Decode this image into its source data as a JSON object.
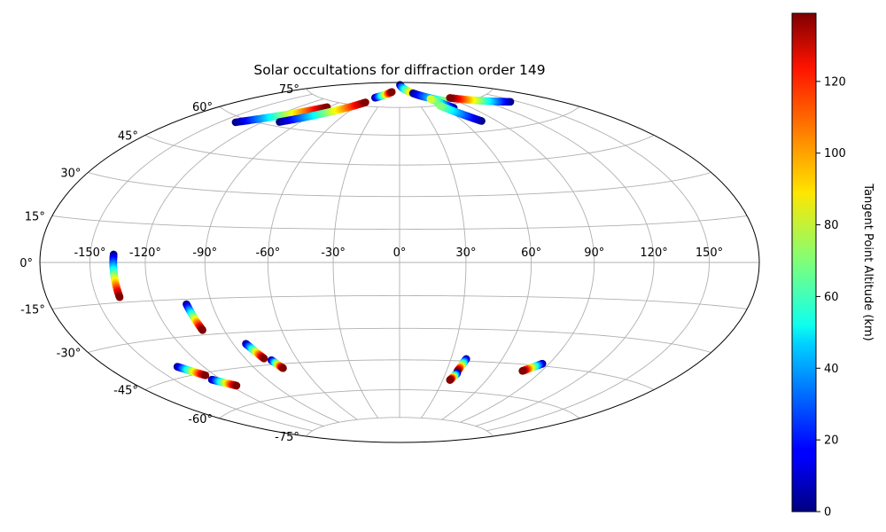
{
  "chart_data": {
    "type": "scatter",
    "projection": "hammer",
    "title": "Solar occultations for diffraction order 149",
    "grid": true,
    "lon_ticks": [
      {
        "value": -150,
        "label": "-150°"
      },
      {
        "value": -120,
        "label": "-120°"
      },
      {
        "value": -90,
        "label": "-90°"
      },
      {
        "value": -60,
        "label": "-60°"
      },
      {
        "value": -30,
        "label": "-30°"
      },
      {
        "value": 0,
        "label": "0°"
      },
      {
        "value": 30,
        "label": "30°"
      },
      {
        "value": 60,
        "label": "60°"
      },
      {
        "value": 90,
        "label": "90°"
      },
      {
        "value": 120,
        "label": "120°"
      },
      {
        "value": 150,
        "label": "150°"
      }
    ],
    "lat_ticks": [
      {
        "value": 75,
        "label": "75°"
      },
      {
        "value": 60,
        "label": "60°"
      },
      {
        "value": 45,
        "label": "45°"
      },
      {
        "value": 30,
        "label": "30°"
      },
      {
        "value": 15,
        "label": "15°"
      },
      {
        "value": 0,
        "label": "0°"
      },
      {
        "value": -15,
        "label": "-15°"
      },
      {
        "value": -30,
        "label": "-30°"
      },
      {
        "value": -45,
        "label": "-45°"
      },
      {
        "value": -60,
        "label": "-60°"
      },
      {
        "value": -75,
        "label": "-75°"
      }
    ],
    "colorbar": {
      "label": "Tangent Point Altitude (km)",
      "min": 0,
      "max": 139,
      "ticks": [
        0,
        20,
        40,
        60,
        80,
        100,
        120
      ],
      "colormap": "jet",
      "position": "right"
    },
    "tracks": [
      {
        "lon_start": -137.0,
        "lat_start": 3.0,
        "lon_end": -137.0,
        "lat_end": -13.0,
        "alt_start": 0,
        "alt_end": 139
      },
      {
        "lon_start": -103.0,
        "lat_start": -17.0,
        "lon_end": -101.5,
        "lat_end": -28.0,
        "alt_start": 0,
        "alt_end": 139
      },
      {
        "lon_start": -83.0,
        "lat_start": -35.0,
        "lon_end": -79.0,
        "lat_end": -42.0,
        "alt_start": 0,
        "alt_end": 139
      },
      {
        "lon_start": -75.5,
        "lat_start": -43.0,
        "lon_end": -72.5,
        "lat_end": -47.0,
        "alt_start": 0,
        "alt_end": 139
      },
      {
        "lon_start": -136.0,
        "lat_start": -41.0,
        "lon_end": -126.0,
        "lat_end": -46.0,
        "alt_start": 0,
        "alt_end": 139
      },
      {
        "lon_start": -126.0,
        "lat_start": -48.0,
        "lon_end": -116.0,
        "lat_end": -52.0,
        "alt_start": 0,
        "alt_end": 139
      },
      {
        "lon_start": 39.0,
        "lat_start": -44.0,
        "lon_end": 37.0,
        "lat_end": -50.0,
        "alt_start": 0,
        "alt_end": 139
      },
      {
        "lon_start": 37.5,
        "lat_start": -51.0,
        "lon_end": 35.0,
        "lat_end": -54.5,
        "alt_start": 0,
        "alt_end": 139
      },
      {
        "lon_start": 86.0,
        "lat_start": -44.0,
        "lon_end": 78.0,
        "lat_end": -48.0,
        "alt_start": 0,
        "alt_end": 139
      },
      {
        "lon_start": -139.0,
        "lat_start": 58.0,
        "lon_end": -92.0,
        "lat_end": 72.0,
        "alt_start": 0,
        "alt_end": 139
      },
      {
        "lon_start": -107.0,
        "lat_start": 62.0,
        "lon_end": -55.0,
        "lat_end": 77.0,
        "alt_start": 0,
        "alt_end": 139
      },
      {
        "lon_start": -50.0,
        "lat_start": 80.0,
        "lon_end": -25.0,
        "lat_end": 84.0,
        "alt_start": 0,
        "alt_end": 139
      },
      {
        "lon_start": 5.0,
        "lat_start": 88.5,
        "lon_end": 53.0,
        "lat_end": 80.5,
        "alt_start": 0,
        "alt_end": 139
      },
      {
        "lon_start": 38.0,
        "lat_start": 83.0,
        "lon_end": 75.0,
        "lat_end": 77.0,
        "alt_start": 0,
        "alt_end": 70
      },
      {
        "lon_start": 70.0,
        "lat_start": 73.0,
        "lon_end": 58.0,
        "lat_end": 79.0,
        "alt_start": 0,
        "alt_end": 80
      },
      {
        "lon_start": 77.0,
        "lat_start": 65.0,
        "lon_end": 57.0,
        "lat_end": 75.0,
        "alt_start": 0,
        "alt_end": 70
      },
      {
        "lon_start": 143.0,
        "lat_start": 70.0,
        "lon_end": 92.0,
        "lat_end": 78.0,
        "alt_start": 0,
        "alt_end": 139
      }
    ]
  }
}
